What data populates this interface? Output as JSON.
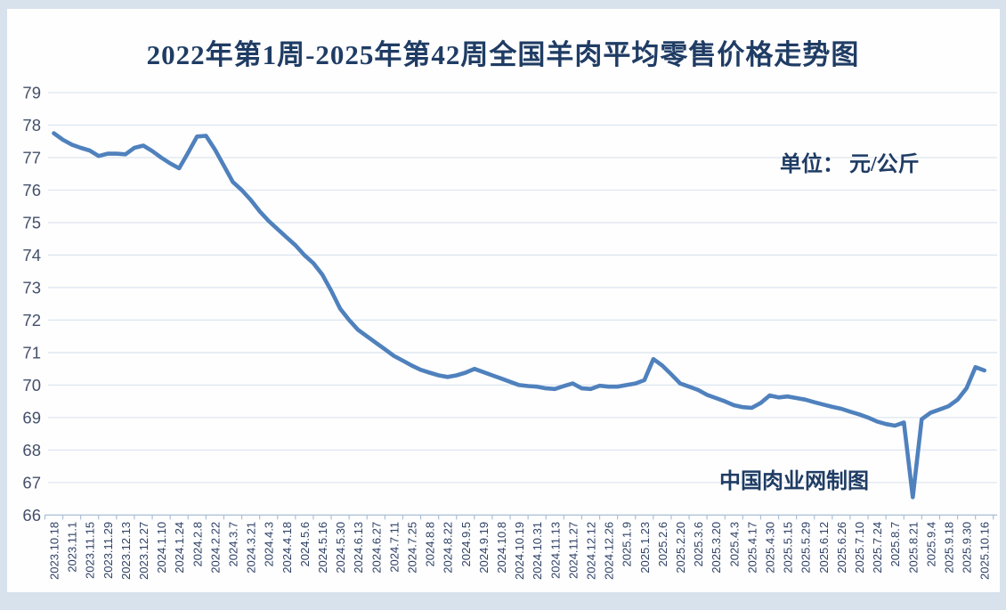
{
  "page": {
    "title": "2022年第1周-2025年第42周全国羊肉平均零售价格走势图",
    "unit_label": "单位： 元/公斤",
    "credit_label": "中国肉业网制图"
  },
  "colors": {
    "line": "#4f81bd",
    "grid": "#dde6f0",
    "axis": "#aabfd6",
    "title_text": "#1f3c64",
    "y_tick_text": "#44506b",
    "x_tick_text": "#2e4166",
    "frame_bg": "#d8e2ec",
    "canvas_bg": "#fefefe"
  },
  "chart_data": {
    "type": "line",
    "title": "2022年第1周-2025年第42周全国羊肉平均零售价格走势图",
    "ylabel": "元/公斤",
    "ylim": [
      66,
      79
    ],
    "y_ticks": [
      66,
      67,
      68,
      69,
      70,
      71,
      72,
      73,
      74,
      75,
      76,
      77,
      78,
      79
    ],
    "grid": "horizontal",
    "legend": "none",
    "x_tick_rotation": -90,
    "values_per_category": 2,
    "categories": [
      "2023.10.18",
      "2023.11.1",
      "2023.11.15",
      "2023.11.29",
      "2023.12.13",
      "2023.12.27",
      "2024.1.10",
      "2024.1.24",
      "2024.2.8",
      "2024.2.22",
      "2024.3.7",
      "2024.3.21",
      "2024.4.3",
      "2024.4.18",
      "2024.5.6",
      "2024.5.16",
      "2024.5.30",
      "2024.6.13",
      "2024.6.27",
      "2024.7.11",
      "2024.7.25",
      "2024.8.8",
      "2024.8.22",
      "2024.9.5",
      "2024.9.19",
      "2024.10.8",
      "2024.10.19",
      "2024.10.31",
      "2024.11.13",
      "2024.11.27",
      "2024.12.12",
      "2024.12.26",
      "2025.1.9",
      "2025.1.23",
      "2025.2.6",
      "2025.2.20",
      "2025.3.6",
      "2025.3.20",
      "2025.4.3",
      "2025.4.17",
      "2025.4.30",
      "2025.5.15",
      "2025.5.29",
      "2025.6.12",
      "2025.6.26",
      "2025.7.10",
      "2025.7.24",
      "2025.8.7",
      "2025.8.21",
      "2025.9.4",
      "2025.9.18",
      "2025.9.30",
      "2025.10.16"
    ],
    "series": [
      {
        "name": "全国羊肉平均零售价格(元/公斤)",
        "values": [
          77.75,
          77.55,
          77.4,
          77.3,
          77.22,
          77.05,
          77.12,
          77.12,
          77.1,
          77.3,
          77.37,
          77.2,
          77.0,
          76.82,
          76.67,
          77.15,
          77.65,
          77.67,
          77.25,
          76.75,
          76.25,
          76.0,
          75.7,
          75.35,
          75.05,
          74.8,
          74.55,
          74.3,
          74.0,
          73.75,
          73.4,
          72.9,
          72.35,
          72.0,
          71.7,
          71.5,
          71.3,
          71.1,
          70.9,
          70.75,
          70.6,
          70.47,
          70.38,
          70.3,
          70.25,
          70.3,
          70.38,
          70.5,
          70.4,
          70.3,
          70.2,
          70.1,
          70.0,
          69.97,
          69.95,
          69.9,
          69.88,
          69.97,
          70.05,
          69.9,
          69.88,
          69.98,
          69.95,
          69.95,
          70.0,
          70.05,
          70.15,
          70.8,
          70.6,
          70.33,
          70.05,
          69.95,
          69.85,
          69.7,
          69.6,
          69.5,
          69.38,
          69.32,
          69.3,
          69.45,
          69.68,
          69.62,
          69.65,
          69.6,
          69.55,
          69.47,
          69.4,
          69.33,
          69.27,
          69.18,
          69.1,
          69.0,
          68.88,
          68.8,
          68.75,
          68.85,
          66.55,
          68.95,
          69.15,
          69.25,
          69.35,
          69.55,
          69.9,
          70.55,
          70.45
        ]
      }
    ]
  }
}
